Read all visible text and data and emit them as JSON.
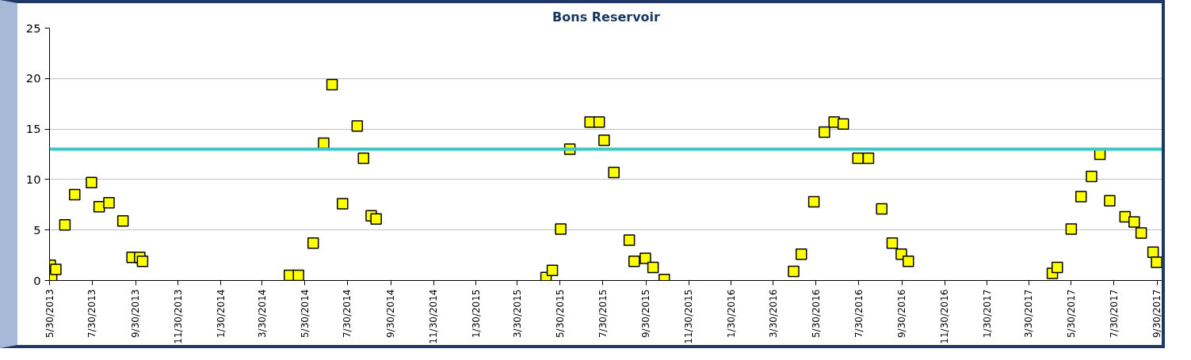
{
  "chart_data": {
    "type": "scatter",
    "title": "Bons Reservoir",
    "x": [
      "2013-05-31",
      "2013-06-02",
      "2013-06-08",
      "2013-06-21",
      "2013-07-05",
      "2013-07-29",
      "2013-08-09",
      "2013-08-23",
      "2013-09-12",
      "2013-09-25",
      "2013-10-06",
      "2013-10-10",
      "2014-05-08",
      "2014-05-21",
      "2014-06-11",
      "2014-06-26",
      "2014-07-08",
      "2014-07-23",
      "2014-08-13",
      "2014-08-22",
      "2014-09-02",
      "2014-09-09",
      "2015-05-10",
      "2015-05-19",
      "2015-05-31",
      "2015-06-13",
      "2015-07-12",
      "2015-07-25",
      "2015-08-01",
      "2015-08-15",
      "2015-09-06",
      "2015-09-13",
      "2015-09-29",
      "2015-10-10",
      "2015-10-26",
      "2016-04-28",
      "2016-05-09",
      "2016-05-27",
      "2016-06-11",
      "2016-06-25",
      "2016-07-08",
      "2016-07-29",
      "2016-08-13",
      "2016-09-01",
      "2016-09-16",
      "2016-09-29",
      "2016-10-09",
      "2017-05-03",
      "2017-05-10",
      "2017-05-30",
      "2017-06-13",
      "2017-06-28",
      "2017-07-10",
      "2017-07-24",
      "2017-08-15",
      "2017-08-28",
      "2017-09-07",
      "2017-09-24",
      "2017-09-29"
    ],
    "values": [
      1.5,
      0.4,
      1.1,
      5.5,
      8.5,
      9.7,
      7.3,
      7.7,
      5.9,
      2.3,
      2.3,
      1.9,
      0.5,
      0.5,
      3.7,
      13.6,
      19.4,
      7.6,
      15.3,
      12.1,
      6.4,
      6.1,
      0.3,
      1.0,
      5.1,
      13.0,
      15.7,
      15.7,
      13.9,
      10.7,
      4.0,
      1.9,
      2.2,
      1.3,
      0.1,
      0.9,
      2.6,
      7.8,
      14.7,
      15.7,
      15.5,
      12.1,
      12.1,
      7.1,
      3.7,
      2.6,
      1.9,
      0.7,
      1.3,
      5.1,
      8.3,
      10.3,
      12.5,
      7.9,
      6.3,
      5.8,
      4.7,
      2.8,
      1.8
    ],
    "color": "#ffff00",
    "marker": "square",
    "xlim": [
      "2013-05-30",
      "2017-10-08"
    ],
    "ylim": [
      0,
      25
    ],
    "yticks": [
      0,
      5,
      10,
      15,
      20,
      25
    ],
    "xticks": [
      {
        "value": "2013-05-30",
        "label": "5/30/2013"
      },
      {
        "value": "2013-07-30",
        "label": "7/30/2013"
      },
      {
        "value": "2013-09-30",
        "label": "9/30/2013"
      },
      {
        "value": "2013-11-30",
        "label": "11/30/2013"
      },
      {
        "value": "2014-01-30",
        "label": "1/30/2014"
      },
      {
        "value": "2014-03-30",
        "label": "3/30/2014"
      },
      {
        "value": "2014-05-30",
        "label": "5/30/2014"
      },
      {
        "value": "2014-07-30",
        "label": "7/30/2014"
      },
      {
        "value": "2014-09-30",
        "label": "9/30/2014"
      },
      {
        "value": "2014-11-30",
        "label": "11/30/2014"
      },
      {
        "value": "2015-01-30",
        "label": "1/30/2015"
      },
      {
        "value": "2015-03-30",
        "label": "3/30/2015"
      },
      {
        "value": "2015-05-30",
        "label": "5/30/2015"
      },
      {
        "value": "2015-07-30",
        "label": "7/30/2015"
      },
      {
        "value": "2015-09-30",
        "label": "9/30/2015"
      },
      {
        "value": "2015-11-30",
        "label": "11/30/2015"
      },
      {
        "value": "2016-01-30",
        "label": "1/30/2016"
      },
      {
        "value": "2016-03-30",
        "label": "3/30/2016"
      },
      {
        "value": "2016-05-30",
        "label": "5/30/2016"
      },
      {
        "value": "2016-07-30",
        "label": "7/30/2016"
      },
      {
        "value": "2016-09-30",
        "label": "9/30/2016"
      },
      {
        "value": "2016-11-30",
        "label": "11/30/2016"
      },
      {
        "value": "2017-01-30",
        "label": "1/30/2017"
      },
      {
        "value": "2017-03-30",
        "label": "3/30/2017"
      },
      {
        "value": "2017-05-30",
        "label": "5/30/2017"
      },
      {
        "value": "2017-07-30",
        "label": "7/30/2017"
      },
      {
        "value": "2017-09-30",
        "label": "9/30/2017"
      }
    ],
    "grid": "y",
    "ref_lines": [
      {
        "axis": "y",
        "value": 13,
        "color": "#3cc8c8"
      }
    ]
  }
}
